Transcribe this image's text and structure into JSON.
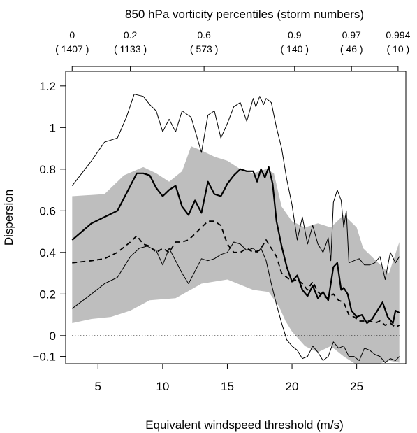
{
  "chart_data": {
    "type": "line",
    "title": "850 hPa vorticity percentiles (storm numbers)",
    "xlabel": "Equivalent windspeed threshold (m/s)",
    "ylabel": "Dispersion",
    "xlim": [
      2.5,
      28.8
    ],
    "ylim": [
      -0.135,
      1.27
    ],
    "x_ticks": [
      "5",
      "10",
      "15",
      "20",
      "25"
    ],
    "x_tick_values": [
      5,
      10,
      15,
      20,
      25
    ],
    "y_ticks": [
      "1.2",
      "1",
      "0.8",
      "0.6",
      "0.4",
      "0.2",
      "0",
      "−0.1"
    ],
    "y_tick_values": [
      1.2,
      1.0,
      0.8,
      0.6,
      0.4,
      0.2,
      0.0,
      -0.1
    ],
    "top_axis": {
      "ticks": [
        {
          "x": 3.0,
          "percentile": "0",
          "count": "( 1407 )"
        },
        {
          "x": 7.5,
          "percentile": "0.2",
          "count": "( 1133 )"
        },
        {
          "x": 13.2,
          "percentile": "0.6",
          "count": "( 573 )"
        },
        {
          "x": 20.2,
          "percentile": "0.9",
          "count": "( 140 )"
        },
        {
          "x": 24.6,
          "percentile": "0.97",
          "count": "( 46 )"
        },
        {
          "x": 28.2,
          "percentile": "0.994",
          "count": "( 10 )"
        }
      ]
    },
    "reference_line": {
      "y": 0,
      "style": "dotted"
    },
    "band": {
      "name": "",
      "color": "#bebebe",
      "upper": [
        [
          3.0,
          0.67
        ],
        [
          5.5,
          0.68
        ],
        [
          7.0,
          0.77
        ],
        [
          8.5,
          0.81
        ],
        [
          9.5,
          0.78
        ],
        [
          10.5,
          0.74
        ],
        [
          11.5,
          0.79
        ],
        [
          12.2,
          0.91
        ],
        [
          13.0,
          0.89
        ],
        [
          14.0,
          0.86
        ],
        [
          15.0,
          0.84
        ],
        [
          16.0,
          0.8
        ],
        [
          17.0,
          0.78
        ],
        [
          18.0,
          0.8
        ],
        [
          18.6,
          0.78
        ],
        [
          19.2,
          0.62
        ],
        [
          20.0,
          0.55
        ],
        [
          21.0,
          0.52
        ],
        [
          22.0,
          0.54
        ],
        [
          23.0,
          0.52
        ],
        [
          24.0,
          0.58
        ],
        [
          25.0,
          0.52
        ],
        [
          25.5,
          0.42
        ],
        [
          26.5,
          0.36
        ],
        [
          27.5,
          0.3
        ],
        [
          28.3,
          0.45
        ]
      ],
      "lower": [
        [
          28.3,
          -0.13
        ],
        [
          27.5,
          -0.12
        ],
        [
          26.5,
          -0.14
        ],
        [
          25.5,
          -0.15
        ],
        [
          25.0,
          -0.14
        ],
        [
          24.0,
          -0.1
        ],
        [
          23.0,
          -0.05
        ],
        [
          22.0,
          -0.08
        ],
        [
          21.0,
          -0.05
        ],
        [
          20.0,
          0.02
        ],
        [
          19.5,
          0.07
        ],
        [
          19.0,
          0.14
        ],
        [
          18.2,
          0.21
        ],
        [
          17.0,
          0.22
        ],
        [
          15.0,
          0.27
        ],
        [
          13.0,
          0.25
        ],
        [
          11.0,
          0.18
        ],
        [
          9.0,
          0.17
        ],
        [
          7.5,
          0.12
        ],
        [
          6.0,
          0.09
        ],
        [
          4.5,
          0.08
        ],
        [
          3.0,
          0.06
        ]
      ]
    },
    "series": [
      {
        "style": "thin",
        "points": [
          [
            3.0,
            0.72
          ],
          [
            4.5,
            0.84
          ],
          [
            5.5,
            0.93
          ],
          [
            6.5,
            0.95
          ],
          [
            7.2,
            1.05
          ],
          [
            7.8,
            1.16
          ],
          [
            8.5,
            1.15
          ],
          [
            9.0,
            1.11
          ],
          [
            9.5,
            1.08
          ],
          [
            10.0,
            0.98
          ],
          [
            10.5,
            1.04
          ],
          [
            11.0,
            0.98
          ],
          [
            11.5,
            1.08
          ],
          [
            12.2,
            1.05
          ],
          [
            13.0,
            0.88
          ],
          [
            13.5,
            1.06
          ],
          [
            14.0,
            1.08
          ],
          [
            14.5,
            0.95
          ],
          [
            15.0,
            1.02
          ],
          [
            15.5,
            1.1
          ],
          [
            16.0,
            1.12
          ],
          [
            16.5,
            1.03
          ],
          [
            17.0,
            1.14
          ],
          [
            17.2,
            1.1
          ],
          [
            17.5,
            1.15
          ],
          [
            17.8,
            1.11
          ],
          [
            18.0,
            1.14
          ],
          [
            18.4,
            1.12
          ],
          [
            18.8,
            1.0
          ],
          [
            19.2,
            0.9
          ],
          [
            19.6,
            0.75
          ],
          [
            20.0,
            0.63
          ],
          [
            20.4,
            0.46
          ],
          [
            20.8,
            0.57
          ],
          [
            21.2,
            0.44
          ],
          [
            21.6,
            0.53
          ],
          [
            22.0,
            0.44
          ],
          [
            22.4,
            0.4
          ],
          [
            22.8,
            0.47
          ],
          [
            23.0,
            0.36
          ],
          [
            23.2,
            0.64
          ],
          [
            23.5,
            0.7
          ],
          [
            23.8,
            0.65
          ],
          [
            24.0,
            0.52
          ],
          [
            24.2,
            0.6
          ],
          [
            24.4,
            0.35
          ],
          [
            24.8,
            0.36
          ],
          [
            25.2,
            0.37
          ],
          [
            25.6,
            0.34
          ],
          [
            26.0,
            0.34
          ],
          [
            26.4,
            0.35
          ],
          [
            26.8,
            0.38
          ],
          [
            27.2,
            0.27
          ],
          [
            27.6,
            0.4
          ],
          [
            28.0,
            0.35
          ],
          [
            28.3,
            0.38
          ]
        ]
      },
      {
        "style": "thick",
        "points": [
          [
            3.0,
            0.46
          ],
          [
            4.5,
            0.54
          ],
          [
            5.5,
            0.57
          ],
          [
            6.5,
            0.6
          ],
          [
            7.5,
            0.72
          ],
          [
            8.0,
            0.78
          ],
          [
            8.5,
            0.78
          ],
          [
            9.0,
            0.77
          ],
          [
            9.5,
            0.71
          ],
          [
            10.0,
            0.67
          ],
          [
            10.5,
            0.7
          ],
          [
            11.0,
            0.72
          ],
          [
            11.5,
            0.62
          ],
          [
            12.0,
            0.58
          ],
          [
            12.5,
            0.65
          ],
          [
            13.0,
            0.59
          ],
          [
            13.5,
            0.74
          ],
          [
            14.0,
            0.68
          ],
          [
            14.5,
            0.67
          ],
          [
            15.0,
            0.73
          ],
          [
            15.5,
            0.77
          ],
          [
            16.0,
            0.8
          ],
          [
            16.5,
            0.79
          ],
          [
            17.0,
            0.79
          ],
          [
            17.3,
            0.74
          ],
          [
            17.6,
            0.8
          ],
          [
            17.9,
            0.76
          ],
          [
            18.2,
            0.81
          ],
          [
            18.5,
            0.73
          ],
          [
            18.8,
            0.55
          ],
          [
            19.2,
            0.43
          ],
          [
            19.6,
            0.33
          ],
          [
            20.0,
            0.26
          ],
          [
            20.4,
            0.29
          ],
          [
            20.8,
            0.22
          ],
          [
            21.2,
            0.19
          ],
          [
            21.6,
            0.24
          ],
          [
            22.0,
            0.18
          ],
          [
            22.4,
            0.21
          ],
          [
            22.8,
            0.17
          ],
          [
            23.2,
            0.33
          ],
          [
            23.5,
            0.35
          ],
          [
            23.8,
            0.22
          ],
          [
            24.0,
            0.23
          ],
          [
            24.3,
            0.2
          ],
          [
            24.6,
            0.12
          ],
          [
            25.0,
            0.09
          ],
          [
            25.4,
            0.1
          ],
          [
            25.8,
            0.06
          ],
          [
            26.2,
            0.08
          ],
          [
            26.6,
            0.12
          ],
          [
            27.0,
            0.16
          ],
          [
            27.4,
            0.09
          ],
          [
            27.8,
            0.06
          ],
          [
            28.0,
            0.12
          ],
          [
            28.3,
            0.11
          ]
        ]
      },
      {
        "style": "dashed",
        "points": [
          [
            3.0,
            0.35
          ],
          [
            4.5,
            0.36
          ],
          [
            5.5,
            0.37
          ],
          [
            6.5,
            0.4
          ],
          [
            7.5,
            0.45
          ],
          [
            8.0,
            0.48
          ],
          [
            8.5,
            0.44
          ],
          [
            9.0,
            0.43
          ],
          [
            9.5,
            0.4
          ],
          [
            10.0,
            0.42
          ],
          [
            10.5,
            0.4
          ],
          [
            11.0,
            0.45
          ],
          [
            11.5,
            0.45
          ],
          [
            12.0,
            0.46
          ],
          [
            12.5,
            0.49
          ],
          [
            13.0,
            0.52
          ],
          [
            13.5,
            0.55
          ],
          [
            14.0,
            0.55
          ],
          [
            14.5,
            0.53
          ],
          [
            15.0,
            0.44
          ],
          [
            15.5,
            0.4
          ],
          [
            16.0,
            0.4
          ],
          [
            16.5,
            0.42
          ],
          [
            17.0,
            0.4
          ],
          [
            17.5,
            0.41
          ],
          [
            18.0,
            0.46
          ],
          [
            18.4,
            0.42
          ],
          [
            18.8,
            0.38
          ],
          [
            19.2,
            0.3
          ],
          [
            19.6,
            0.28
          ],
          [
            20.0,
            0.26
          ],
          [
            20.4,
            0.27
          ],
          [
            20.8,
            0.25
          ],
          [
            21.2,
            0.22
          ],
          [
            21.6,
            0.26
          ],
          [
            22.0,
            0.21
          ],
          [
            22.4,
            0.19
          ],
          [
            22.8,
            0.18
          ],
          [
            23.2,
            0.2
          ],
          [
            23.6,
            0.17
          ],
          [
            24.0,
            0.16
          ],
          [
            24.4,
            0.1
          ],
          [
            24.8,
            0.09
          ],
          [
            25.2,
            0.07
          ],
          [
            25.6,
            0.07
          ],
          [
            26.0,
            0.07
          ],
          [
            26.4,
            0.06
          ],
          [
            26.8,
            0.07
          ],
          [
            27.2,
            0.05
          ],
          [
            27.6,
            0.06
          ],
          [
            28.0,
            0.04
          ],
          [
            28.3,
            0.05
          ]
        ]
      },
      {
        "style": "thin",
        "points": [
          [
            3.0,
            0.13
          ],
          [
            4.5,
            0.2
          ],
          [
            5.5,
            0.25
          ],
          [
            6.5,
            0.28
          ],
          [
            7.5,
            0.38
          ],
          [
            8.2,
            0.42
          ],
          [
            8.8,
            0.43
          ],
          [
            9.5,
            0.41
          ],
          [
            10.0,
            0.34
          ],
          [
            10.5,
            0.42
          ],
          [
            11.0,
            0.36
          ],
          [
            11.5,
            0.3
          ],
          [
            12.0,
            0.25
          ],
          [
            12.5,
            0.31
          ],
          [
            13.0,
            0.37
          ],
          [
            13.5,
            0.36
          ],
          [
            14.0,
            0.37
          ],
          [
            14.5,
            0.39
          ],
          [
            15.0,
            0.4
          ],
          [
            15.5,
            0.45
          ],
          [
            16.0,
            0.44
          ],
          [
            16.5,
            0.41
          ],
          [
            17.0,
            0.42
          ],
          [
            17.3,
            0.4
          ],
          [
            17.6,
            0.42
          ],
          [
            18.0,
            0.36
          ],
          [
            18.4,
            0.25
          ],
          [
            18.8,
            0.15
          ],
          [
            19.2,
            0.06
          ],
          [
            19.6,
            -0.02
          ],
          [
            20.0,
            -0.05
          ],
          [
            20.4,
            -0.07
          ],
          [
            20.8,
            -0.11
          ],
          [
            21.2,
            -0.1
          ],
          [
            21.6,
            -0.05
          ],
          [
            22.0,
            -0.08
          ],
          [
            22.4,
            -0.12
          ],
          [
            22.8,
            -0.1
          ],
          [
            23.2,
            -0.03
          ],
          [
            23.6,
            -0.06
          ],
          [
            24.0,
            -0.05
          ],
          [
            24.4,
            -0.1
          ],
          [
            24.8,
            -0.1
          ],
          [
            25.2,
            -0.12
          ],
          [
            25.6,
            -0.06
          ],
          [
            26.0,
            -0.07
          ],
          [
            26.4,
            -0.09
          ],
          [
            26.8,
            -0.1
          ],
          [
            27.2,
            -0.13
          ],
          [
            27.6,
            -0.11
          ],
          [
            28.0,
            -0.12
          ],
          [
            28.3,
            -0.1
          ]
        ]
      }
    ]
  }
}
